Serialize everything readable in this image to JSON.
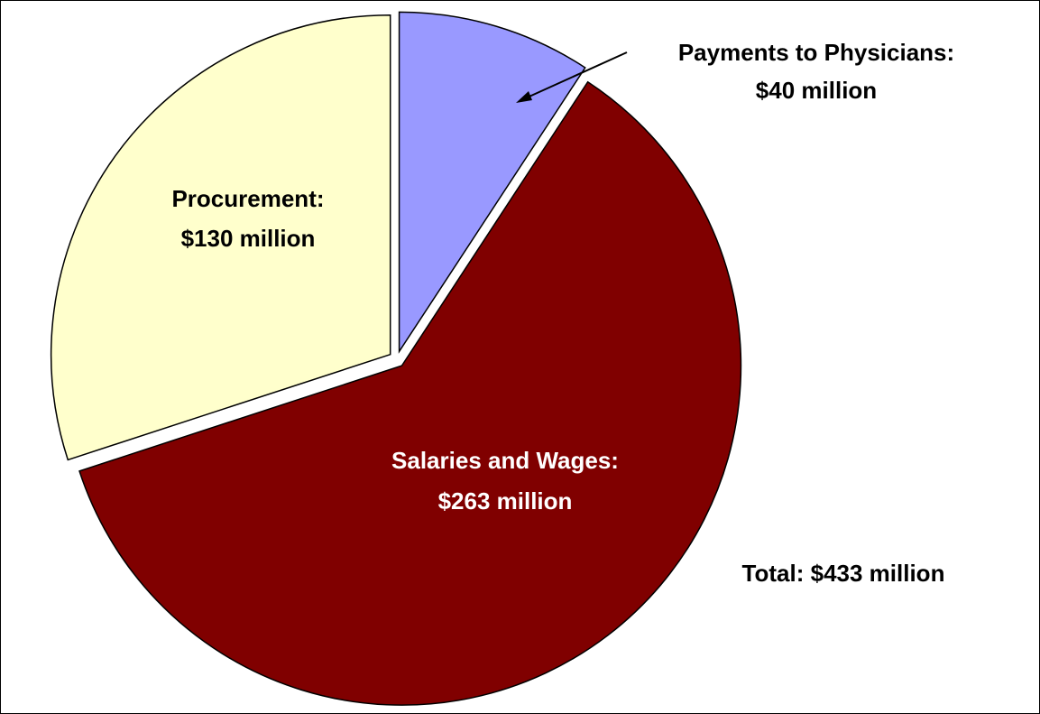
{
  "chart_data": {
    "type": "pie",
    "categories": [
      "Payments to Physicians:",
      "Salaries and Wages:",
      "Procurement:"
    ],
    "values": [
      40,
      263,
      130
    ],
    "value_labels": [
      "$40 million",
      "$263 million",
      "$130 million"
    ],
    "colors": [
      "#9999ff",
      "#800000",
      "#ffffcc"
    ],
    "annotation": "Total: $433 million"
  }
}
